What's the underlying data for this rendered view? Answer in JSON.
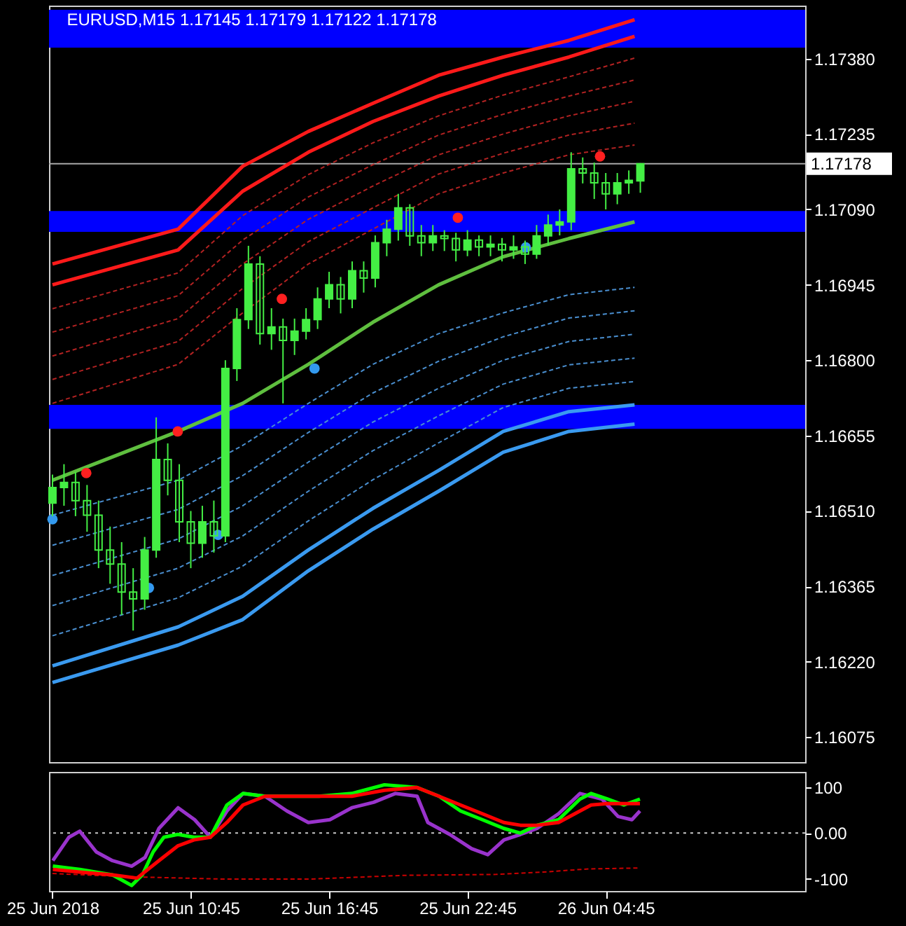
{
  "chart_data": [
    {
      "type": "candlestick",
      "title": "EURUSD,M15  1.17145 1.17179 1.17122 1.17178",
      "color": "#44ee44",
      "x": [
        "2018-06-25T04:45",
        "2018-06-25T05:15",
        "2018-06-25T05:45",
        "2018-06-25T06:15",
        "2018-06-25T06:45",
        "2018-06-25T07:15",
        "2018-06-25T07:45",
        "2018-06-25T08:15",
        "2018-06-25T08:45",
        "2018-06-25T09:15",
        "2018-06-25T09:45",
        "2018-06-25T10:15",
        "2018-06-25T10:45",
        "2018-06-25T11:15",
        "2018-06-25T11:45",
        "2018-06-25T12:15",
        "2018-06-25T12:45",
        "2018-06-25T13:15",
        "2018-06-25T13:45",
        "2018-06-25T14:15",
        "2018-06-25T14:45",
        "2018-06-25T15:15",
        "2018-06-25T15:45",
        "2018-06-25T16:15",
        "2018-06-25T16:45",
        "2018-06-25T17:15",
        "2018-06-25T17:45",
        "2018-06-25T18:15",
        "2018-06-25T18:45",
        "2018-06-25T19:15",
        "2018-06-25T19:45",
        "2018-06-25T20:15",
        "2018-06-25T20:45",
        "2018-06-25T21:15",
        "2018-06-25T21:45",
        "2018-06-25T22:15",
        "2018-06-25T22:45",
        "2018-06-25T23:15",
        "2018-06-25T23:45",
        "2018-06-26T00:15",
        "2018-06-26T00:45",
        "2018-06-26T01:15",
        "2018-06-26T01:45",
        "2018-06-26T02:15",
        "2018-06-26T02:45",
        "2018-06-26T03:15",
        "2018-06-26T03:45",
        "2018-06-26T04:15",
        "2018-06-26T04:45",
        "2018-06-26T05:15",
        "2018-06-26T05:45",
        "2018-06-26T06:15"
      ],
      "ohlc": [
        [
          1.16525,
          1.1658,
          1.165,
          1.16555
        ],
        [
          1.16555,
          1.166,
          1.1652,
          1.16565
        ],
        [
          1.16565,
          1.16585,
          1.165,
          1.1653
        ],
        [
          1.1653,
          1.1656,
          1.1647,
          1.16502
        ],
        [
          1.16502,
          1.1653,
          1.164,
          1.16435
        ],
        [
          1.16435,
          1.1648,
          1.1637,
          1.16408
        ],
        [
          1.16408,
          1.1645,
          1.1631,
          1.16354
        ],
        [
          1.16354,
          1.164,
          1.1628,
          1.16341
        ],
        [
          1.16341,
          1.1646,
          1.1632,
          1.16435
        ],
        [
          1.16435,
          1.1669,
          1.1642,
          1.16609
        ],
        [
          1.16609,
          1.1664,
          1.1654,
          1.16569
        ],
        [
          1.16569,
          1.166,
          1.1645,
          1.16489
        ],
        [
          1.16489,
          1.1651,
          1.164,
          1.16448
        ],
        [
          1.16448,
          1.1652,
          1.1642,
          1.16489
        ],
        [
          1.16489,
          1.1653,
          1.1643,
          1.16462
        ],
        [
          1.16462,
          1.168,
          1.1645,
          1.16784
        ],
        [
          1.16784,
          1.169,
          1.1676,
          1.16878
        ],
        [
          1.16878,
          1.1702,
          1.1686,
          1.16985
        ],
        [
          1.16985,
          1.17,
          1.1683,
          1.16851
        ],
        [
          1.16851,
          1.169,
          1.1682,
          1.16864
        ],
        [
          1.16864,
          1.1688,
          1.16717,
          1.16838
        ],
        [
          1.16838,
          1.1688,
          1.1681,
          1.16856
        ],
        [
          1.16856,
          1.169,
          1.1684,
          1.16878
        ],
        [
          1.16878,
          1.1694,
          1.1686,
          1.16918
        ],
        [
          1.16918,
          1.1697,
          1.169,
          1.16945
        ],
        [
          1.16945,
          1.1696,
          1.1689,
          1.16918
        ],
        [
          1.16918,
          1.1699,
          1.169,
          1.16972
        ],
        [
          1.16972,
          1.1699,
          1.1693,
          1.16958
        ],
        [
          1.16958,
          1.1704,
          1.1694,
          1.17026
        ],
        [
          1.17026,
          1.1707,
          1.17,
          1.17052
        ],
        [
          1.17052,
          1.1712,
          1.1703,
          1.17093
        ],
        [
          1.17093,
          1.171,
          1.1702,
          1.17039
        ],
        [
          1.17039,
          1.1706,
          1.17,
          1.17026
        ],
        [
          1.17026,
          1.1706,
          1.1701,
          1.17039
        ],
        [
          1.17039,
          1.1705,
          1.1701,
          1.17034
        ],
        [
          1.17034,
          1.17045,
          1.1699,
          1.17012
        ],
        [
          1.17012,
          1.1705,
          1.17,
          1.17031
        ],
        [
          1.17031,
          1.1704,
          1.17,
          1.17018
        ],
        [
          1.17018,
          1.1704,
          1.17,
          1.17023
        ],
        [
          1.17023,
          1.17035,
          1.1699,
          1.17012
        ],
        [
          1.17012,
          1.1704,
          1.16995,
          1.17018
        ],
        [
          1.17018,
          1.1703,
          1.16985,
          1.17004
        ],
        [
          1.17004,
          1.1706,
          1.16995,
          1.17039
        ],
        [
          1.17039,
          1.1708,
          1.1702,
          1.1706
        ],
        [
          1.1706,
          1.1709,
          1.1704,
          1.17066
        ],
        [
          1.17066,
          1.172,
          1.1705,
          1.17168
        ],
        [
          1.17168,
          1.1719,
          1.1714,
          1.1716
        ],
        [
          1.1716,
          1.1718,
          1.1711,
          1.17141
        ],
        [
          1.17141,
          1.1716,
          1.1709,
          1.1712
        ],
        [
          1.1712,
          1.1716,
          1.171,
          1.17141
        ],
        [
          1.17141,
          1.17165,
          1.1712,
          1.17146
        ],
        [
          1.17145,
          1.17179,
          1.17122,
          1.17178
        ]
      ],
      "series": [
        {
          "type": "line",
          "color": "#ff1a1a",
          "line_style": "solid",
          "x": [
            "2018-06-25T04:45",
            "2018-06-25T10:12",
            "2018-06-25T13:00",
            "2018-06-25T15:51",
            "2018-06-25T18:39",
            "2018-06-25T21:30",
            "2018-06-26T00:18",
            "2018-06-26T03:09",
            "2018-06-26T06:00"
          ],
          "values": [
            1.16985,
            1.17052,
            1.17173,
            1.1724,
            1.17294,
            1.17348,
            1.17383,
            1.17415,
            1.17455
          ]
        },
        {
          "type": "line",
          "color": "#ff1a1a",
          "line_style": "solid",
          "x": [
            "2018-06-25T04:45",
            "2018-06-25T10:12",
            "2018-06-25T13:00",
            "2018-06-25T15:51",
            "2018-06-25T18:39",
            "2018-06-25T21:30",
            "2018-06-26T00:18",
            "2018-06-26T03:09",
            "2018-06-26T06:00"
          ],
          "values": [
            1.16945,
            1.17012,
            1.17125,
            1.172,
            1.17259,
            1.17308,
            1.17348,
            1.17383,
            1.17423
          ]
        },
        {
          "type": "line",
          "color": "#b22222",
          "line_style": "dashed",
          "x": [
            "2018-06-25T04:45",
            "2018-06-25T10:12",
            "2018-06-25T13:00",
            "2018-06-25T15:51",
            "2018-06-25T18:39",
            "2018-06-25T21:30",
            "2018-06-26T00:18",
            "2018-06-26T03:09",
            "2018-06-26T06:00"
          ],
          "values": [
            1.16899,
            1.16968,
            1.17078,
            1.17157,
            1.17218,
            1.1727,
            1.1731,
            1.17345,
            1.17381
          ]
        },
        {
          "type": "line",
          "color": "#b22222",
          "line_style": "dashed",
          "x": [
            "2018-06-25T04:45",
            "2018-06-25T10:12",
            "2018-06-25T13:00",
            "2018-06-25T15:51",
            "2018-06-25T18:39",
            "2018-06-25T21:30",
            "2018-06-26T00:18",
            "2018-06-26T03:09",
            "2018-06-26T06:00"
          ],
          "values": [
            1.16854,
            1.16924,
            1.17031,
            1.17114,
            1.17176,
            1.17233,
            1.17273,
            1.17308,
            1.17339
          ]
        },
        {
          "type": "line",
          "color": "#b22222",
          "line_style": "dashed",
          "x": [
            "2018-06-25T04:45",
            "2018-06-25T10:12",
            "2018-06-25T13:00",
            "2018-06-25T15:51",
            "2018-06-25T18:39",
            "2018-06-25T21:30",
            "2018-06-26T00:18",
            "2018-06-26T03:09",
            "2018-06-26T06:00"
          ],
          "values": [
            1.16808,
            1.1688,
            1.16985,
            1.17071,
            1.17135,
            1.17195,
            1.17235,
            1.1727,
            1.17298
          ]
        },
        {
          "type": "line",
          "color": "#b22222",
          "line_style": "dashed",
          "x": [
            "2018-06-25T04:45",
            "2018-06-25T10:12",
            "2018-06-25T13:00",
            "2018-06-25T15:51",
            "2018-06-25T18:39",
            "2018-06-25T21:30",
            "2018-06-26T00:18",
            "2018-06-26T03:09",
            "2018-06-26T06:00"
          ],
          "values": [
            1.16763,
            1.16836,
            1.16938,
            1.17028,
            1.17093,
            1.17158,
            1.17198,
            1.17233,
            1.17256
          ]
        },
        {
          "type": "line",
          "color": "#b22222",
          "line_style": "dashed",
          "x": [
            "2018-06-25T04:45",
            "2018-06-25T10:12",
            "2018-06-25T13:00",
            "2018-06-25T15:51",
            "2018-06-25T18:39",
            "2018-06-25T21:30",
            "2018-06-26T00:18",
            "2018-06-26T03:09",
            "2018-06-26T06:00"
          ],
          "values": [
            1.16717,
            1.16792,
            1.16891,
            1.16985,
            1.17052,
            1.1712,
            1.1716,
            1.17195,
            1.17214
          ]
        },
        {
          "type": "line",
          "color": "#5fbf3f",
          "line_style": "solid",
          "x": [
            "2018-06-25T04:45",
            "2018-06-25T10:12",
            "2018-06-25T13:00",
            "2018-06-25T15:51",
            "2018-06-25T18:39",
            "2018-06-25T21:30",
            "2018-06-26T00:18",
            "2018-06-26T03:09",
            "2018-06-26T06:00"
          ],
          "values": [
            1.16569,
            1.16663,
            1.16717,
            1.16792,
            1.16873,
            1.16945,
            1.16999,
            1.17034,
            1.17066
          ]
        },
        {
          "type": "line",
          "color": "#4a8fd0",
          "line_style": "dashed",
          "x": [
            "2018-06-25T04:45",
            "2018-06-25T10:12",
            "2018-06-25T13:00",
            "2018-06-25T15:51",
            "2018-06-25T18:39",
            "2018-06-25T21:30",
            "2018-06-26T00:18",
            "2018-06-26T03:09",
            "2018-06-26T06:00"
          ],
          "values": [
            1.16502,
            1.16569,
            1.16636,
            1.16717,
            1.16792,
            1.16851,
            1.16891,
            1.16926,
            1.1694
          ]
        },
        {
          "type": "line",
          "color": "#4a8fd0",
          "line_style": "dashed",
          "x": [
            "2018-06-25T04:45",
            "2018-06-25T10:12",
            "2018-06-25T13:00",
            "2018-06-25T15:51",
            "2018-06-25T18:39",
            "2018-06-25T21:30",
            "2018-06-26T00:18",
            "2018-06-26T03:09",
            "2018-06-26T06:00"
          ],
          "values": [
            1.16444,
            1.16513,
            1.16578,
            1.16661,
            1.16737,
            1.16798,
            1.16845,
            1.16881,
            1.16895
          ]
        },
        {
          "type": "line",
          "color": "#4a8fd0",
          "line_style": "dashed",
          "x": [
            "2018-06-25T04:45",
            "2018-06-25T10:12",
            "2018-06-25T13:00",
            "2018-06-25T15:51",
            "2018-06-25T18:39",
            "2018-06-25T21:30",
            "2018-06-26T00:18",
            "2018-06-26T03:09",
            "2018-06-26T06:00"
          ],
          "values": [
            1.16386,
            1.16456,
            1.1652,
            1.16604,
            1.16681,
            1.16746,
            1.168,
            1.16836,
            1.1685
          ]
        },
        {
          "type": "line",
          "color": "#4a8fd0",
          "line_style": "dashed",
          "x": [
            "2018-06-25T04:45",
            "2018-06-25T10:12",
            "2018-06-25T13:00",
            "2018-06-25T15:51",
            "2018-06-25T18:39",
            "2018-06-25T21:30",
            "2018-06-26T00:18",
            "2018-06-26T03:09",
            "2018-06-26T06:00"
          ],
          "values": [
            1.16328,
            1.164,
            1.16462,
            1.16548,
            1.16626,
            1.16693,
            1.16754,
            1.16791,
            1.16804
          ]
        },
        {
          "type": "line",
          "color": "#4a8fd0",
          "line_style": "dashed",
          "x": [
            "2018-06-25T04:45",
            "2018-06-25T10:12",
            "2018-06-25T13:00",
            "2018-06-25T15:51",
            "2018-06-25T18:39",
            "2018-06-25T21:30",
            "2018-06-26T00:18",
            "2018-06-26T03:09",
            "2018-06-26T06:00"
          ],
          "values": [
            1.1627,
            1.16343,
            1.16404,
            1.16491,
            1.1657,
            1.16641,
            1.16709,
            1.16746,
            1.16759
          ]
        },
        {
          "type": "line",
          "color": "#3a9af0",
          "line_style": "solid",
          "x": [
            "2018-06-25T04:45",
            "2018-06-25T10:12",
            "2018-06-25T13:00",
            "2018-06-25T15:51",
            "2018-06-25T18:39",
            "2018-06-25T21:30",
            "2018-06-26T00:18",
            "2018-06-26T03:09",
            "2018-06-26T06:00"
          ],
          "values": [
            1.16212,
            1.16287,
            1.16346,
            1.16435,
            1.16515,
            1.16588,
            1.16663,
            1.16701,
            1.16714
          ]
        },
        {
          "type": "line",
          "color": "#3a9af0",
          "line_style": "solid",
          "x": [
            "2018-06-25T04:45",
            "2018-06-25T10:12",
            "2018-06-25T13:00",
            "2018-06-25T15:51",
            "2018-06-25T18:39",
            "2018-06-25T21:30",
            "2018-06-26T00:18",
            "2018-06-26T03:09",
            "2018-06-26T06:00"
          ],
          "values": [
            1.1618,
            1.16252,
            1.16301,
            1.16395,
            1.16475,
            1.16548,
            1.16623,
            1.16663,
            1.16677
          ]
        },
        {
          "type": "scatter",
          "color": "#ff2020",
          "marker": "circle",
          "x": [
            "2018-06-25T06:13",
            "2018-06-25T10:11",
            "2018-06-25T14:42",
            "2018-06-25T22:20",
            "2018-06-26T04:30"
          ],
          "values": [
            1.16583,
            1.16663,
            1.16918,
            1.17074,
            1.17192
          ]
        },
        {
          "type": "scatter",
          "color": "#3399ee",
          "marker": "circle",
          "x": [
            "2018-06-25T04:45",
            "2018-06-25T08:56",
            "2018-06-25T11:56",
            "2018-06-25T16:07",
            "2018-06-26T01:17"
          ],
          "values": [
            1.16494,
            1.16362,
            1.16464,
            1.16784,
            1.17017
          ]
        }
      ],
      "xlim": [
        "2018-06-25T04:36",
        "2018-06-26T13:24"
      ],
      "ylim": [
        1.16027,
        1.17482
      ],
      "yticks": [
        {
          "value": 1.16075,
          "label": "1.16075"
        },
        {
          "value": 1.1622,
          "label": "1.16220"
        },
        {
          "value": 1.16365,
          "label": "1.16365"
        },
        {
          "value": 1.1651,
          "label": "1.16510"
        },
        {
          "value": 1.16655,
          "label": "1.16655"
        },
        {
          "value": 1.168,
          "label": "1.16800"
        },
        {
          "value": 1.16945,
          "label": "1.16945"
        },
        {
          "value": 1.1709,
          "label": "1.17090"
        },
        {
          "value": 1.17235,
          "label": "1.17235"
        },
        {
          "value": 1.1738,
          "label": "1.17380"
        }
      ],
      "tick_labels": "y",
      "ref_lines": [
        {
          "axis": "y",
          "value": 1.17178,
          "label": "1.17178",
          "color": "#a8a8a8"
        }
      ],
      "bands": [
        {
          "axis": "y",
          "from": 1.17401,
          "to": 1.17474,
          "color": "#0000ff"
        },
        {
          "axis": "y",
          "from": 1.17047,
          "to": 1.17087,
          "color": "#0000ff"
        },
        {
          "axis": "y",
          "from": 1.16668,
          "to": 1.16714,
          "color": "#0000ff"
        }
      ]
    },
    {
      "type": "line",
      "series": [
        {
          "color": "#cc0000",
          "line_style": "dashed",
          "x": [
            "2018-06-25T04:45",
            "2018-06-25T08:00",
            "2018-06-25T12:00",
            "2018-06-25T16:00",
            "2018-06-25T20:00",
            "2018-06-26T00:00",
            "2018-06-26T02:00",
            "2018-06-26T04:00",
            "2018-06-26T06:14"
          ],
          "values": [
            -88,
            -95,
            -100,
            -100,
            -92,
            -90,
            -85,
            -78,
            -76
          ]
        },
        {
          "color": "#9933cc",
          "line_style": "solid",
          "x": [
            "2018-06-25T04:46",
            "2018-06-25T05:28",
            "2018-06-25T05:56",
            "2018-06-25T06:39",
            "2018-06-25T07:21",
            "2018-06-25T08:11",
            "2018-06-25T08:46",
            "2018-06-25T09:22",
            "2018-06-25T10:12",
            "2018-06-25T10:55",
            "2018-06-25T11:36",
            "2018-06-25T12:19",
            "2018-06-25T13:01",
            "2018-06-25T13:58",
            "2018-06-25T14:55",
            "2018-06-25T15:51",
            "2018-06-25T16:47",
            "2018-06-25T17:44",
            "2018-06-25T18:41",
            "2018-06-25T19:37",
            "2018-06-25T20:34",
            "2018-06-25T21:02",
            "2018-06-25T21:59",
            "2018-06-25T22:56",
            "2018-06-25T23:38",
            "2018-06-26T00:20",
            "2018-06-26T01:03",
            "2018-06-26T01:46",
            "2018-06-26T02:42",
            "2018-06-26T03:38",
            "2018-06-26T04:35",
            "2018-06-26T05:17",
            "2018-06-26T05:53",
            "2018-06-26T06:14"
          ],
          "values": [
            -60,
            -9,
            4,
            -41,
            -60,
            -72,
            -53,
            10,
            55,
            29,
            -9,
            48,
            86,
            80,
            48,
            23,
            29,
            55,
            67,
            86,
            80,
            23,
            -3,
            -34,
            -47,
            -15,
            -3,
            10,
            42,
            86,
            74,
            36,
            29,
            48
          ]
        },
        {
          "color": "#00ff00",
          "line_style": "solid",
          "x": [
            "2018-06-25T04:46",
            "2018-06-25T05:56",
            "2018-06-25T07:21",
            "2018-06-25T08:11",
            "2018-06-25T08:39",
            "2018-06-25T09:07",
            "2018-06-25T09:35",
            "2018-06-25T10:11",
            "2018-06-25T10:53",
            "2018-06-25T11:36",
            "2018-06-25T12:19",
            "2018-06-25T13:01",
            "2018-06-25T13:58",
            "2018-06-25T15:08",
            "2018-06-25T16:19",
            "2018-06-25T17:44",
            "2018-06-25T19:09",
            "2018-06-25T20:34",
            "2018-06-25T21:31",
            "2018-06-25T22:27",
            "2018-06-25T23:24",
            "2018-06-26T00:20",
            "2018-06-26T01:03",
            "2018-06-26T01:46",
            "2018-06-26T02:42",
            "2018-06-26T03:38",
            "2018-06-26T04:07",
            "2018-06-26T04:49",
            "2018-06-26T05:32",
            "2018-06-26T06:14"
          ],
          "values": [
            -72,
            -79,
            -91,
            -114,
            -91,
            -41,
            -9,
            -3,
            -9,
            -9,
            61,
            86,
            80,
            80,
            80,
            86,
            105,
            99,
            80,
            48,
            29,
            10,
            0,
            17,
            29,
            74,
            86,
            74,
            61,
            74
          ]
        },
        {
          "color": "#ff0000",
          "line_style": "solid",
          "x": [
            "2018-06-25T04:46",
            "2018-06-25T05:56",
            "2018-06-25T07:21",
            "2018-06-25T08:25",
            "2018-06-25T09:22",
            "2018-06-25T10:11",
            "2018-06-25T10:53",
            "2018-06-25T11:36",
            "2018-06-25T12:19",
            "2018-06-25T13:01",
            "2018-06-25T13:58",
            "2018-06-25T15:08",
            "2018-06-25T16:19",
            "2018-06-25T17:44",
            "2018-06-25T19:09",
            "2018-06-25T20:34",
            "2018-06-25T21:31",
            "2018-06-25T22:27",
            "2018-06-25T23:24",
            "2018-06-26T00:20",
            "2018-06-26T01:03",
            "2018-06-26T01:46",
            "2018-06-26T02:42",
            "2018-06-26T03:38",
            "2018-06-26T04:07",
            "2018-06-26T04:49",
            "2018-06-26T06:14"
          ],
          "values": [
            -79,
            -85,
            -91,
            -98,
            -60,
            -28,
            -15,
            -9,
            23,
            61,
            80,
            80,
            80,
            80,
            93,
            99,
            80,
            61,
            42,
            23,
            17,
            17,
            23,
            48,
            61,
            64,
            64
          ]
        }
      ],
      "xlim": [
        "2018-06-25T04:36",
        "2018-06-26T13:24"
      ],
      "xticks": [
        {
          "value": "2018-06-25T04:45",
          "label": "25 Jun 2018"
        },
        {
          "value": "2018-06-25T10:45",
          "label": "25 Jun 10:45"
        },
        {
          "value": "2018-06-25T16:45",
          "label": "25 Jun 16:45"
        },
        {
          "value": "2018-06-25T22:45",
          "label": "25 Jun 22:45"
        },
        {
          "value": "2018-06-26T04:45",
          "label": "26 Jun 04:45"
        }
      ],
      "ylim": [
        -126,
        133
      ],
      "yticks": [
        100,
        {
          "value": 0,
          "label": "0.00"
        },
        -100
      ],
      "ref_lines": [
        {
          "axis": "y",
          "value": 0,
          "color": "#c8c8c8",
          "line_style": "dotted"
        }
      ]
    }
  ]
}
